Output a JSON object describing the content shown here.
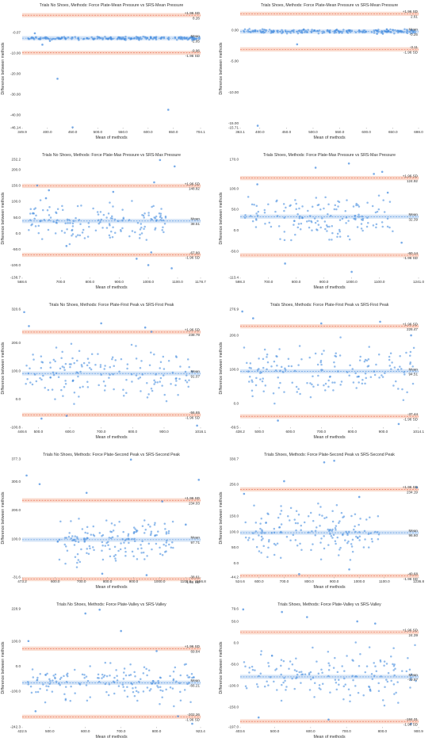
{
  "labels": {
    "xlabel": "Mean of methods",
    "ylabel": "Difference between methods",
    "upper": "+1.96 SD",
    "lower": "-1.96 SD",
    "mean": "Mean"
  },
  "colors": {
    "point": "#4a8fe0",
    "mean_line": "#4a8fe0",
    "mean_band": "#cfe1f6",
    "loa_line": "#e8674a",
    "loa_band": "#f9d3c4"
  },
  "chart_data": [
    {
      "type": "scatter",
      "title": "Trials No Shoes, Methods: Force Plate-Mean Pressure vs SRS-Mean Pressure",
      "xticks": [
        "349.9",
        "400.0",
        "450.0",
        "500.0",
        "550.0",
        "600.0",
        "650.0",
        "704.1"
      ],
      "xlim": [
        349.9,
        704.1
      ],
      "yticks": [
        "-0.07",
        "-10.00",
        "-20.00",
        "-30.00",
        "-40.00",
        "-46.14"
      ],
      "ylim": [
        -46.14,
        11.0
      ],
      "mean": -2.85,
      "mean_label": "-2.85",
      "upper": 8.26,
      "upper_label": "8.26",
      "lower": -9.96,
      "lower_label": "-9.96",
      "points": [
        [
          375,
          -0.5
        ],
        [
          390,
          -6.0
        ],
        [
          405,
          -4.2
        ],
        [
          420,
          -22.5
        ],
        [
          450,
          -46.0
        ],
        [
          640,
          -37.5
        ]
      ],
      "cluster": {
        "xmin": 352,
        "xmax": 702,
        "ymin": -4.0,
        "ymax": -1.8,
        "n": 190
      }
    },
    {
      "type": "scatter",
      "title": "Trials Shoes, Methods: Force Plate-Mean Pressure vs SRS-Mean Pressure",
      "xticks": [
        "363.1",
        "400.0",
        "450.0",
        "500.0",
        "550.0",
        "600.0",
        "650.0",
        "698.0"
      ],
      "xlim": [
        363.1,
        698.0
      ],
      "yticks": [
        "0.00",
        "-5.00",
        "-10.00",
        "-15.00",
        "-15.71"
      ],
      "ylim": [
        -15.71,
        3.3
      ],
      "mean": -0.25,
      "mean_label": "-0.25",
      "upper": 2.61,
      "upper_label": "2.61",
      "lower": -3.11,
      "lower_label": "-3.11",
      "points": [
        [
          396,
          -15.4
        ],
        [
          470,
          -2.3
        ],
        [
          540,
          -0.2
        ],
        [
          620,
          -0.6
        ]
      ],
      "cluster": {
        "xmin": 365,
        "xmax": 696,
        "ymin": -0.7,
        "ymax": 0.3,
        "n": 190
      }
    },
    {
      "type": "scatter",
      "title": "Trials No Shoes, Methods: Force Plate-Max Pressure vs SRS-Max Pressure",
      "xticks": [
        "568.6",
        "700.0",
        "800.0",
        "900.0",
        "1000.0",
        "1100.0",
        "1178.7"
      ],
      "xlim": [
        568.6,
        1178.7
      ],
      "yticks": [
        "232.2",
        "200.0",
        "150.0",
        "100.0",
        "50.0",
        "0.0",
        "-50.0",
        "-100.0",
        "-138.7"
      ],
      "ylim": [
        -138.7,
        232.2
      ],
      "mean": 38.51,
      "mean_label": "38.51",
      "upper": 148.82,
      "upper_label": "148.82",
      "lower": -67.8,
      "lower_label": "-67.80",
      "points": [
        [
          620,
          150
        ],
        [
          660,
          135
        ],
        [
          1020,
          160
        ],
        [
          1040,
          230
        ],
        [
          1090,
          210
        ],
        [
          1000,
          -100
        ],
        [
          1080,
          -110
        ],
        [
          720,
          -40
        ],
        [
          960,
          -80
        ],
        [
          650,
          110
        ],
        [
          880,
          130
        ],
        [
          1010,
          -60
        ]
      ],
      "cluster": {
        "xmin": 590,
        "xmax": 1060,
        "ymin": -50,
        "ymax": 120,
        "n": 150
      }
    },
    {
      "type": "scatter",
      "title": "Trials Shoes, Methods: Force Plate-Max Pressure vs SRS-Max Pressure",
      "xticks": [
        "598.3",
        "700.0",
        "800.0",
        "900.0",
        "1000.0",
        "1100.0",
        "1241.0"
      ],
      "xlim": [
        598.3,
        1241.0
      ],
      "yticks": [
        "170.0",
        "100.0",
        "50.0",
        "0.0",
        "-50.0",
        "-113.4"
      ],
      "ylim": [
        -113.4,
        170.0
      ],
      "mean": 32.39,
      "mean_label": "32.39",
      "upper": 124.92,
      "upper_label": "124.92",
      "lower": -60.14,
      "lower_label": "-60.14",
      "points": [
        [
          870,
          150
        ],
        [
          990,
          160
        ],
        [
          1080,
          135
        ],
        [
          1110,
          140
        ],
        [
          1000,
          -100
        ],
        [
          760,
          -80
        ],
        [
          1180,
          -30
        ],
        [
          660,
          110
        ],
        [
          1130,
          90
        ]
      ],
      "cluster": {
        "xmin": 610,
        "xmax": 1150,
        "ymin": -50,
        "ymax": 110,
        "n": 150
      }
    },
    {
      "type": "scatter",
      "title": "Trials No Shoes, Methods: Force Plate-First Peak vs SRS-First Peak",
      "xticks": [
        "448.6",
        "500.0",
        "600.0",
        "700.0",
        "800.0",
        "900.0",
        "1016.1"
      ],
      "xlim": [
        448.6,
        1016.1
      ],
      "yticks": [
        "320.6",
        "200.0",
        "100.0",
        "0.0",
        "-100.8"
      ],
      "ylim": [
        -100.8,
        320.6
      ],
      "mean": 91.07,
      "mean_label": "91.07",
      "upper": 238.79,
      "upper_label": "238.79",
      "lower": -56.65,
      "lower_label": "-56.65",
      "points": [
        [
          455,
          310
        ],
        [
          470,
          260
        ],
        [
          700,
          270
        ],
        [
          840,
          255
        ],
        [
          1005,
          -95
        ],
        [
          510,
          -70
        ],
        [
          860,
          240
        ],
        [
          590,
          -60
        ]
      ],
      "cluster": {
        "xmin": 460,
        "xmax": 1000,
        "ymin": -40,
        "ymax": 220,
        "n": 160
      }
    },
    {
      "type": "scatter",
      "title": "Trials Shoes, Methods: Force Plate-First Peak vs SRS-First Peak",
      "xticks": [
        "438.2",
        "500.0",
        "600.0",
        "700.0",
        "800.0",
        "900.0",
        "1014.1"
      ],
      "xlim": [
        438.2,
        1014.1
      ],
      "yticks": [
        "276.9",
        "200.0",
        "100.0",
        "0.0",
        "-69.5"
      ],
      "ylim": [
        -69.5,
        276.9
      ],
      "mean": 94.51,
      "mean_label": "94.51",
      "upper": 226.47,
      "upper_label": "226.47",
      "lower": -37.44,
      "lower_label": "-37.44",
      "points": [
        [
          445,
          270
        ],
        [
          480,
          250
        ],
        [
          700,
          235
        ],
        [
          890,
          240
        ],
        [
          950,
          -60
        ],
        [
          560,
          -50
        ],
        [
          990,
          200
        ]
      ],
      "cluster": {
        "xmin": 450,
        "xmax": 1000,
        "ymin": -20,
        "ymax": 210,
        "n": 160
      }
    },
    {
      "type": "scatter",
      "title": "Trials No Shoes, Methods: Force Plate-Second Peak vs SRS-Second Peak",
      "xticks": [
        "473.2",
        "600.0",
        "700.0",
        "800.0",
        "900.0",
        "1000.0",
        "1100.0",
        "1156.8"
      ],
      "xlim": [
        473.2,
        1156.8
      ],
      "yticks": [
        "377.3",
        "300.0",
        "200.0",
        "100.0",
        "-31.6"
      ],
      "ylim": [
        -31.6,
        377.3
      ],
      "mean": 97.71,
      "mean_label": "97.71",
      "upper": 234.03,
      "upper_label": "234.03",
      "lower": -38.61,
      "lower_label": "-38.61",
      "points": [
        [
          490,
          320
        ],
        [
          1150,
          305
        ],
        [
          890,
          375
        ],
        [
          540,
          290
        ],
        [
          720,
          260
        ],
        [
          1010,
          230
        ],
        [
          950,
          -25
        ],
        [
          780,
          -20
        ],
        [
          1100,
          150
        ]
      ],
      "cluster": {
        "xmin": 590,
        "xmax": 1060,
        "ymin": -10,
        "ymax": 200,
        "n": 160
      }
    },
    {
      "type": "scatter",
      "title": "Trials Shoes, Methods: Force Plate-Second Peak vs SRS-Second Peak",
      "xticks": [
        "524.6",
        "600.0",
        "700.0",
        "800.0",
        "900.0",
        "1000.0",
        "1100.0",
        "1236.8"
      ],
      "xlim": [
        524.6,
        1236.8
      ],
      "yticks": [
        "330.7",
        "250.0",
        "150.0",
        "100.0",
        "50.0",
        "0.0",
        "-44.2"
      ],
      "ylim": [
        -44.2,
        330.7
      ],
      "mean": 96.6,
      "mean_label": "96.60",
      "upper": 234.19,
      "upper_label": "234.19",
      "lower": -40.68,
      "lower_label": "-40.68",
      "points": [
        [
          860,
          320
        ],
        [
          900,
          325
        ],
        [
          1230,
          240
        ],
        [
          540,
          220
        ],
        [
          700,
          260
        ],
        [
          1000,
          210
        ],
        [
          760,
          -35
        ],
        [
          960,
          -20
        ]
      ],
      "cluster": {
        "xmin": 540,
        "xmax": 1080,
        "ymin": -20,
        "ymax": 220,
        "n": 160
      }
    },
    {
      "type": "scatter",
      "title": "Trials No Shoes, Methods: Force Plate-Valley vs SRS-Valley",
      "xticks": [
        "422.5",
        "500.0",
        "600.0",
        "700.0",
        "800.0",
        "923.4"
      ],
      "xlim": [
        422.5,
        923.4
      ],
      "yticks": [
        "228.9",
        "100.0",
        "0.0",
        "-100.0",
        "-242.3"
      ],
      "ylim": [
        -242.3,
        228.9
      ],
      "mean": -66.21,
      "mean_label": "-66.21",
      "upper": 69.84,
      "upper_label": "69.84",
      "lower": -202.26,
      "lower_label": "-202.26",
      "points": [
        [
          440,
          100
        ],
        [
          600,
          210
        ],
        [
          640,
          225
        ],
        [
          700,
          140
        ],
        [
          900,
          -230
        ],
        [
          460,
          -180
        ],
        [
          860,
          -200
        ],
        [
          800,
          60
        ]
      ],
      "cluster": {
        "xmin": 430,
        "xmax": 910,
        "ymin": -170,
        "ymax": 40,
        "n": 160
      }
    },
    {
      "type": "scatter",
      "title": "Trials Shoes, Methods: Force Plate-Valley vs SRS-Valley",
      "xticks": [
        "403.6",
        "500.0",
        "600.0",
        "700.0",
        "800.0",
        "900.9"
      ],
      "xlim": [
        403.6,
        900.9
      ],
      "yticks": [
        "79.6",
        "50.0",
        "0.0",
        "-50.0",
        "-100.0",
        "-150.0",
        "-197.0"
      ],
      "ylim": [
        -197.0,
        79.6
      ],
      "mean": -79.97,
      "mean_label": "-79.97",
      "upper": 24.39,
      "upper_label": "24.39",
      "lower": -184.31,
      "lower_label": "-184.31",
      "points": [
        [
          412,
          78
        ],
        [
          520,
          72
        ],
        [
          590,
          60
        ],
        [
          730,
          50
        ],
        [
          780,
          45
        ],
        [
          880,
          -190
        ],
        [
          455,
          -175
        ],
        [
          650,
          -180
        ]
      ],
      "cluster": {
        "xmin": 410,
        "xmax": 895,
        "ymin": -160,
        "ymax": 15,
        "n": 160
      }
    }
  ]
}
